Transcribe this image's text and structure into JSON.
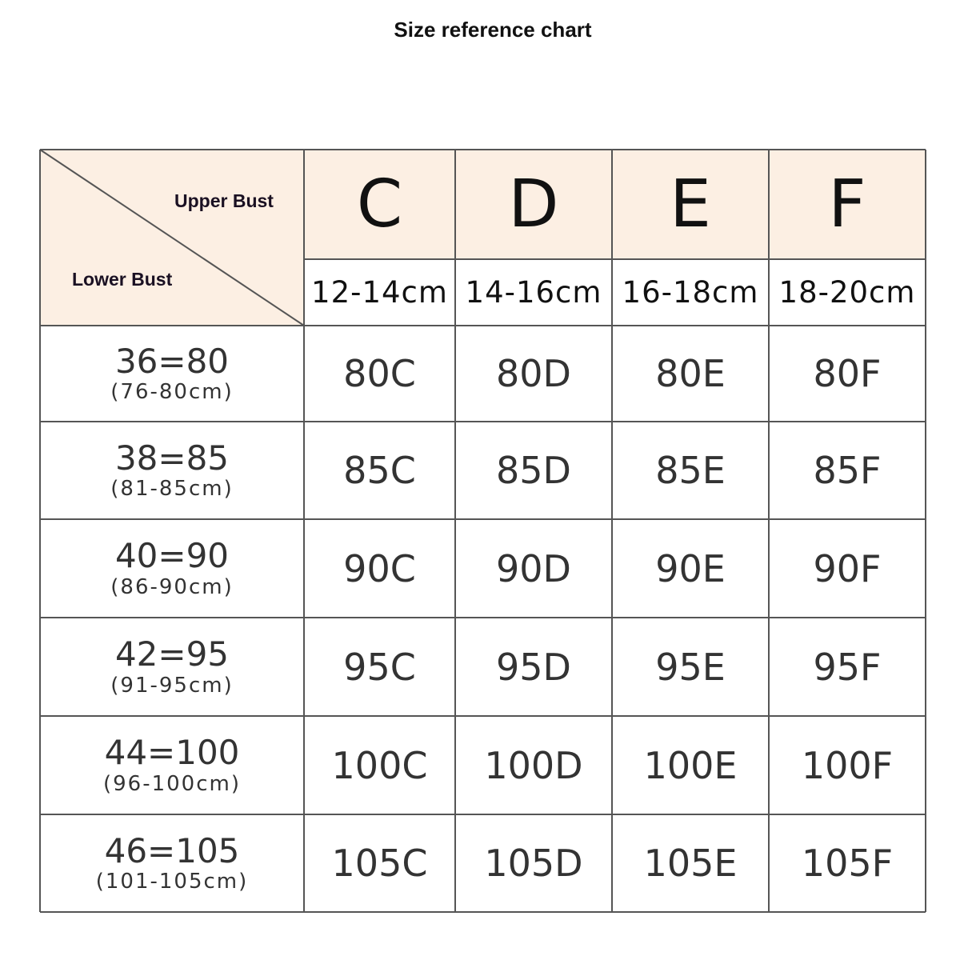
{
  "title": "Size reference chart",
  "corner": {
    "upper_label": "Upper Bust",
    "lower_label": "Lower Bust"
  },
  "colors": {
    "header_background": "#fcefe3",
    "grid_line": "#555555"
  },
  "columns": [
    {
      "cup": "C",
      "range": "12-14cm"
    },
    {
      "cup": "D",
      "range": "14-16cm"
    },
    {
      "cup": "E",
      "range": "16-18cm"
    },
    {
      "cup": "F",
      "range": "18-20cm"
    }
  ],
  "rows": [
    {
      "band": "36=80",
      "range": "(76-80cm)",
      "sizes": [
        "80C",
        "80D",
        "80E",
        "80F"
      ]
    },
    {
      "band": "38=85",
      "range": "(81-85cm)",
      "sizes": [
        "85C",
        "85D",
        "85E",
        "85F"
      ]
    },
    {
      "band": "40=90",
      "range": "(86-90cm)",
      "sizes": [
        "90C",
        "90D",
        "90E",
        "90F"
      ]
    },
    {
      "band": "42=95",
      "range": "(91-95cm)",
      "sizes": [
        "95C",
        "95D",
        "95E",
        "95F"
      ]
    },
    {
      "band": "44=100",
      "range": "(96-100cm)",
      "sizes": [
        "100C",
        "100D",
        "100E",
        "100F"
      ]
    },
    {
      "band": "46=105",
      "range": "(101-105cm)",
      "sizes": [
        "105C",
        "105D",
        "105E",
        "105F"
      ]
    }
  ]
}
